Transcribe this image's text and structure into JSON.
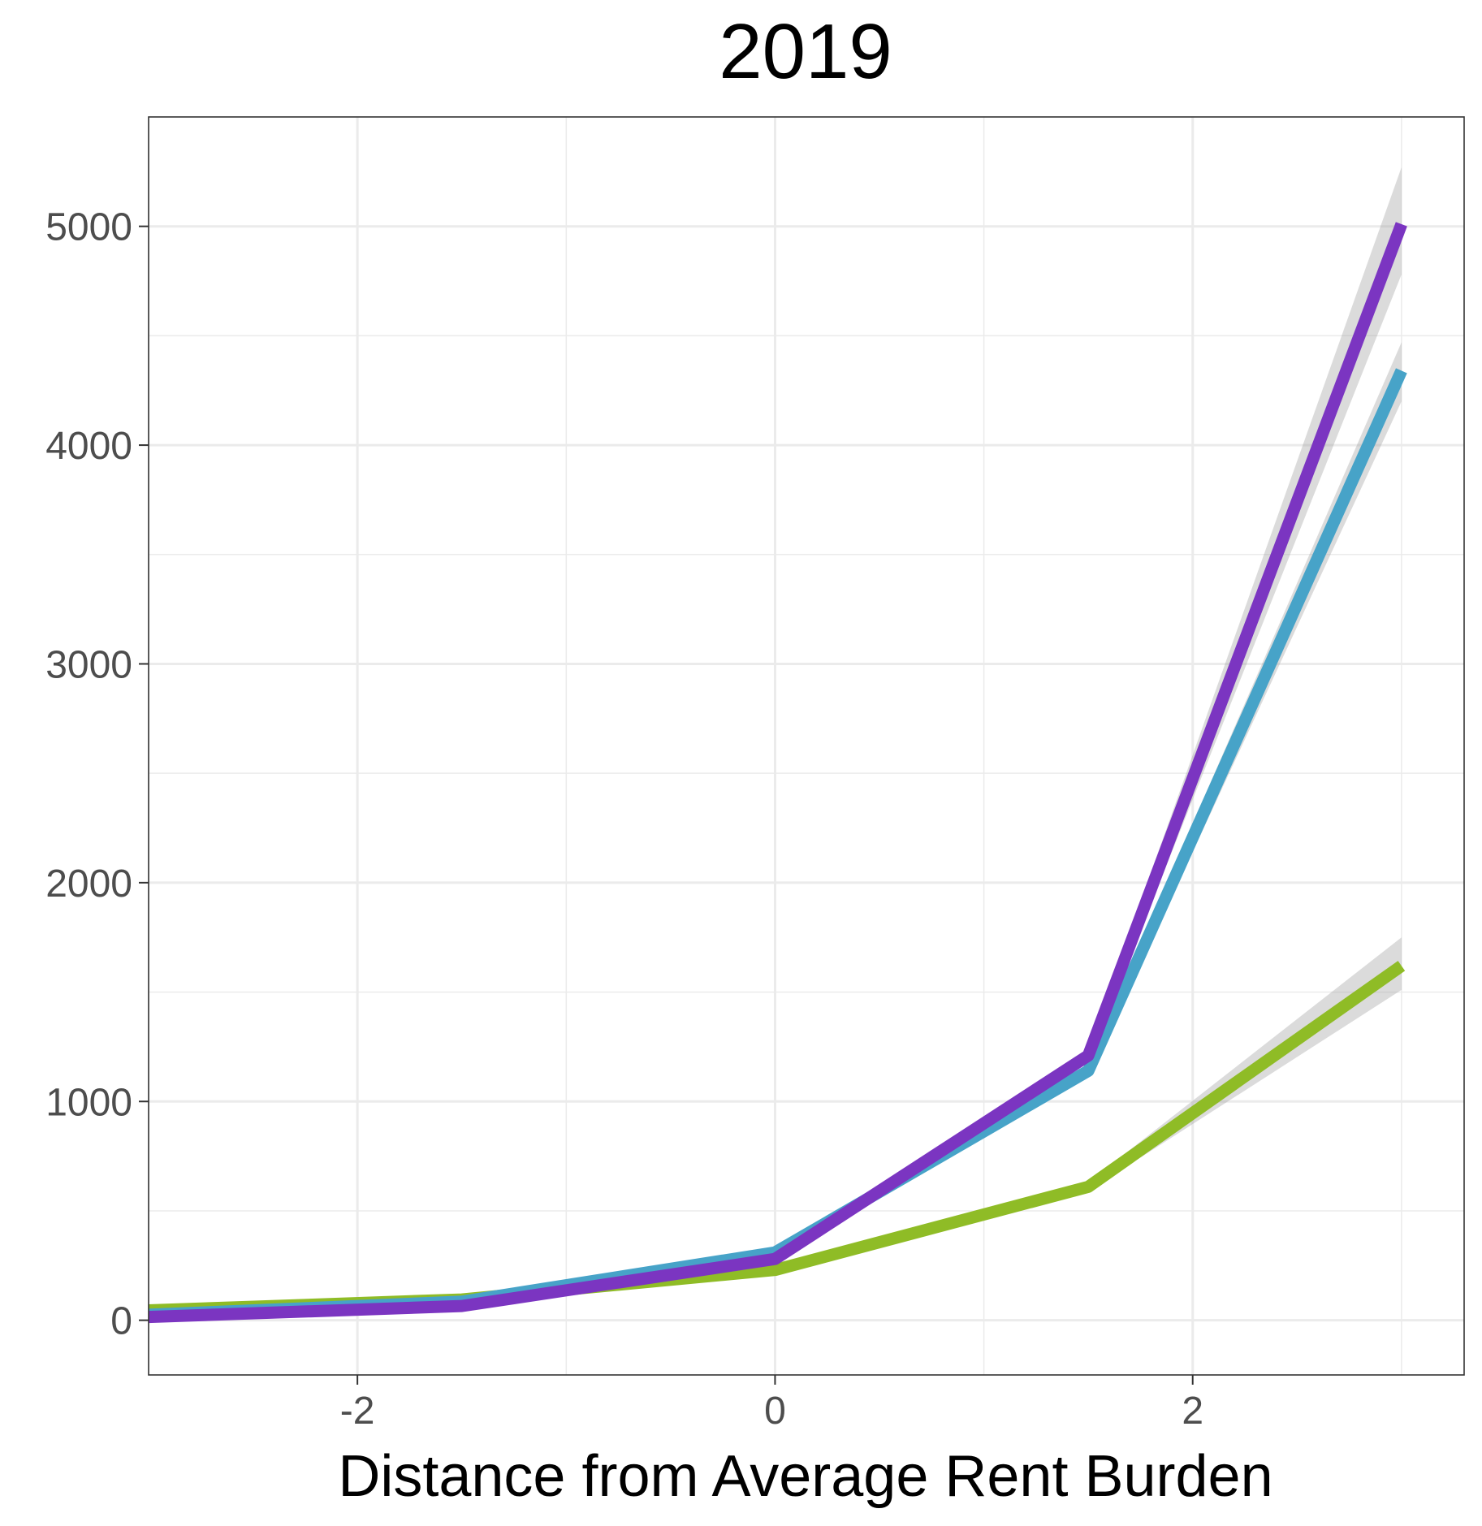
{
  "chart_data": {
    "type": "line",
    "title": "2019",
    "xlabel": "Distance from Average Rent Burden",
    "ylabel": "",
    "xlim": [
      -3.0,
      3.3
    ],
    "ylim": [
      -250,
      5500
    ],
    "x_ticks": [
      -2,
      0,
      2
    ],
    "x_tick_labels": [
      "-2",
      "0",
      "2"
    ],
    "x_minor_ticks": [
      -3,
      -1,
      1,
      3
    ],
    "y_ticks": [
      0,
      1000,
      2000,
      3000,
      4000,
      5000
    ],
    "y_tick_labels": [
      "0",
      "1000",
      "2000",
      "3000",
      "4000",
      "5000"
    ],
    "y_minor_ticks": [
      500,
      1500,
      2500,
      3500,
      4500
    ],
    "grid": true,
    "legend": "none",
    "x": [
      -3,
      -1.5,
      0,
      1.5,
      3
    ],
    "series": [
      {
        "color": "#8fbc26",
        "values": [
          45,
          95,
          230,
          610,
          1620
        ],
        "ci_lower": [
          40,
          90,
          215,
          590,
          1510
        ],
        "ci_upper": [
          50,
          100,
          245,
          630,
          1750
        ]
      },
      {
        "color": "#47a3c8",
        "values": [
          25,
          85,
          310,
          1140,
          4340
        ],
        "ci_lower": [
          20,
          80,
          295,
          1110,
          4200
        ],
        "ci_upper": [
          30,
          90,
          325,
          1170,
          4470
        ]
      },
      {
        "color": "#7b35c1",
        "values": [
          15,
          65,
          280,
          1210,
          5010
        ],
        "ci_lower": [
          10,
          60,
          265,
          1180,
          4780
        ],
        "ci_upper": [
          20,
          70,
          295,
          1240,
          5270
        ]
      }
    ]
  }
}
